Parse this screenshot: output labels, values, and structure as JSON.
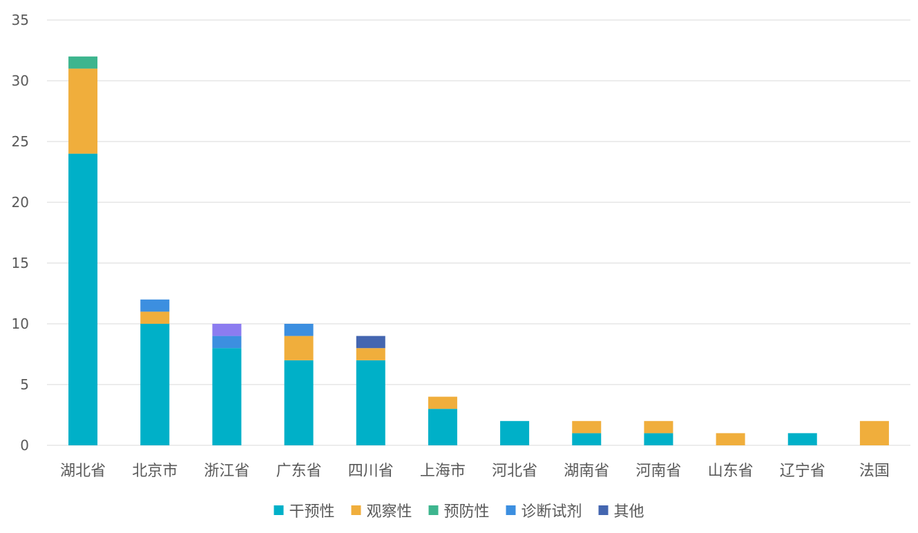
{
  "chart_data": {
    "type": "bar",
    "stacked": true,
    "title": "",
    "xlabel": "",
    "ylabel": "",
    "ylim": [
      0,
      35
    ],
    "yticks": [
      0,
      5,
      10,
      15,
      20,
      25,
      30,
      35
    ],
    "grid": true,
    "legend_position": "bottom",
    "categories": [
      "湖北省",
      "北京市",
      "浙江省",
      "广东省",
      "四川省",
      "上海市",
      "河北省",
      "湖南省",
      "河南省",
      "山东省",
      "辽宁省",
      "法国"
    ],
    "series": [
      {
        "name": "干预性",
        "color": "#00B0C8",
        "values": [
          24,
          10,
          8,
          7,
          7,
          3,
          2,
          1,
          1,
          0,
          1,
          0
        ]
      },
      {
        "name": "观察性",
        "color": "#F0AE3C",
        "values": [
          7,
          1,
          0,
          2,
          1,
          1,
          0,
          1,
          1,
          1,
          0,
          2
        ]
      },
      {
        "name": "预防性",
        "color": "#3DB58E",
        "values": [
          1,
          0,
          0,
          0,
          0,
          0,
          0,
          0,
          0,
          0,
          0,
          0
        ]
      },
      {
        "name": "诊断试剂",
        "color": "#3C8FE0",
        "values": [
          0,
          1,
          1,
          1,
          0,
          0,
          0,
          0,
          0,
          0,
          0,
          0
        ]
      },
      {
        "name": "其他",
        "color": "#4466B0",
        "values": [
          0,
          0,
          0,
          0,
          1,
          0,
          0,
          0,
          0,
          0,
          0,
          0
        ]
      },
      {
        "name": "",
        "color": "#8C7CF0",
        "values": [
          0,
          0,
          1,
          0,
          0,
          0,
          0,
          0,
          0,
          0,
          0,
          0
        ]
      }
    ]
  }
}
